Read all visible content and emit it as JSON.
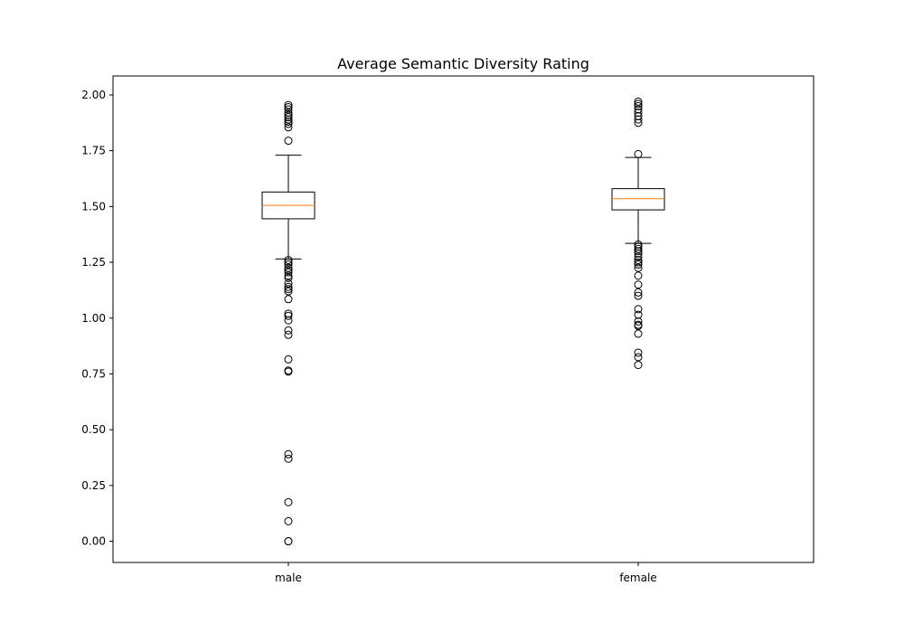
{
  "chart_data": {
    "type": "boxplot",
    "title": "Average Semantic Diversity Rating",
    "xlabel": "",
    "ylabel": "",
    "categories": [
      "male",
      "female"
    ],
    "ylim": [
      -0.095,
      2.085
    ],
    "yticks": [
      0.0,
      0.25,
      0.5,
      0.75,
      1.0,
      1.25,
      1.5,
      1.75,
      2.0
    ],
    "ytick_labels": [
      "0.00",
      "0.25",
      "0.50",
      "0.75",
      "1.00",
      "1.25",
      "1.50",
      "1.75",
      "2.00"
    ],
    "grid": false,
    "boxes": [
      {
        "category": "male",
        "q1": 1.445,
        "median": 1.505,
        "q3": 1.565,
        "whisker_low": 1.265,
        "whisker_high": 1.73,
        "outliers": [
          1.955,
          1.945,
          1.935,
          1.92,
          1.91,
          1.9,
          1.89,
          1.88,
          1.87,
          1.855,
          1.795,
          1.26,
          1.25,
          1.24,
          1.225,
          1.215,
          1.205,
          1.19,
          1.18,
          1.155,
          1.14,
          1.13,
          1.12,
          1.085,
          1.02,
          1.01,
          0.99,
          0.945,
          0.925,
          0.815,
          0.765,
          0.76,
          0.39,
          0.37,
          0.175,
          0.09,
          0.0,
          0.0
        ]
      },
      {
        "category": "female",
        "q1": 1.485,
        "median": 1.535,
        "q3": 1.58,
        "whisker_low": 1.335,
        "whisker_high": 1.72,
        "outliers": [
          1.97,
          1.96,
          1.95,
          1.935,
          1.92,
          1.905,
          1.89,
          1.875,
          1.735,
          1.33,
          1.32,
          1.31,
          1.3,
          1.29,
          1.275,
          1.26,
          1.25,
          1.24,
          1.225,
          1.19,
          1.15,
          1.115,
          1.1,
          1.04,
          1.015,
          0.985,
          0.97,
          0.965,
          0.93,
          0.845,
          0.825,
          0.79
        ]
      }
    ],
    "colors": {
      "box": "#000000",
      "median": "#ff7f0e",
      "outlier": "#000000"
    }
  }
}
